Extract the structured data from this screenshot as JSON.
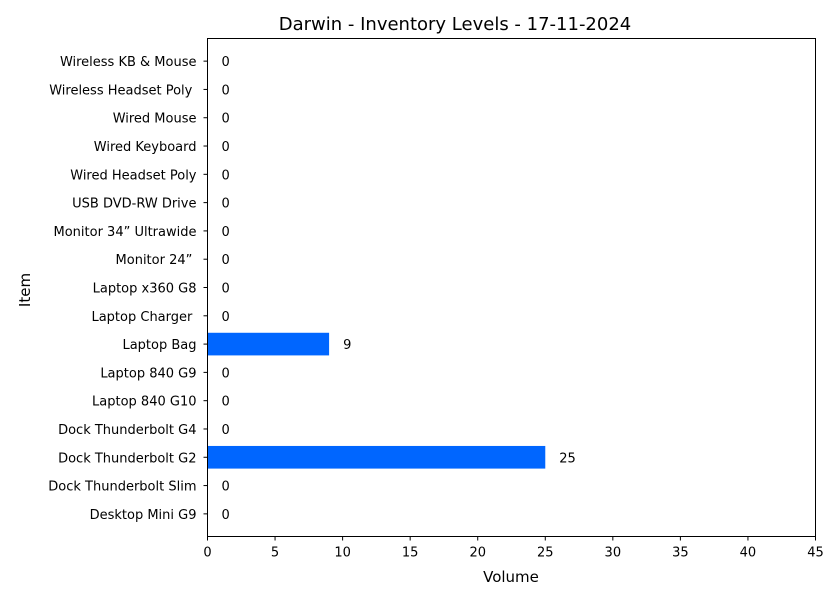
{
  "chart_data": {
    "type": "bar",
    "orientation": "horizontal",
    "title": "Darwin - Inventory Levels - 17-11-2024",
    "xlabel": "Volume",
    "ylabel": "Item",
    "xlim": [
      0,
      45
    ],
    "xticks": [
      0,
      5,
      10,
      15,
      20,
      25,
      30,
      35,
      40,
      45
    ],
    "grid": false,
    "bar_color": "#0066ff",
    "categories": [
      "Desktop Mini G9",
      "Dock Thunderbolt Slim",
      "Dock Thunderbolt G2",
      "Dock Thunderbolt G4",
      "Laptop 840 G10",
      "Laptop 840 G9",
      "Laptop Bag",
      "Laptop Charger ",
      "Laptop x360 G8",
      "Monitor 24” ",
      "Monitor 34” Ultrawide",
      "USB DVD-RW Drive",
      "Wired Headset Poly",
      "Wired Keyboard",
      "Wired Mouse",
      "Wireless Headset Poly ",
      "Wireless KB & Mouse"
    ],
    "values": [
      0,
      0,
      25,
      0,
      0,
      0,
      9,
      0,
      0,
      0,
      0,
      0,
      0,
      0,
      0,
      0,
      0
    ]
  }
}
